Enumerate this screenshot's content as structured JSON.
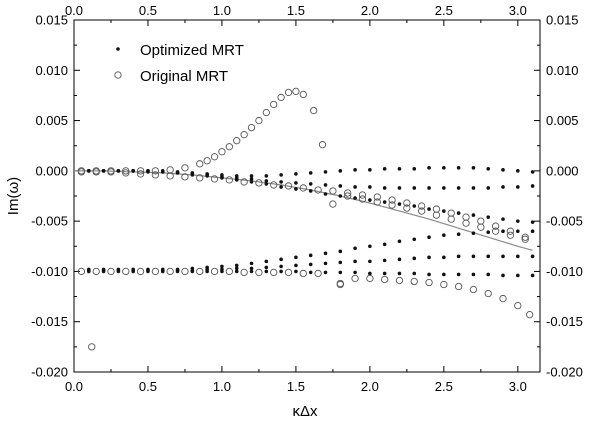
{
  "chart_data": {
    "type": "scatter",
    "title": "",
    "xlabel": "κΔx",
    "ylabel": "Im(ω)",
    "xlim": [
      0.0,
      3.15
    ],
    "ylim": [
      -0.02,
      0.015
    ],
    "xticks": [
      0.0,
      0.5,
      1.0,
      1.5,
      2.0,
      2.5,
      3.0
    ],
    "yticks": [
      -0.02,
      -0.015,
      -0.01,
      -0.005,
      0.0,
      0.005,
      0.01,
      0.015
    ],
    "xtick_labels": [
      "0.0",
      "0.5",
      "1.0",
      "1.5",
      "2.0",
      "2.5",
      "3.0"
    ],
    "ytick_labels": [
      "-0.020",
      "-0.015",
      "-0.010",
      "-0.005",
      "0.000",
      "0.005",
      "0.010",
      "0.015"
    ],
    "grid": false,
    "legend_position": "top-left",
    "colors": {
      "optimized": "#111111",
      "original": "#555555",
      "curve": "#8a8a8a",
      "axes": "#000000"
    },
    "series": [
      {
        "name": "Optimized MRT",
        "marker": "filled-dot",
        "x": [
          0.1,
          0.2,
          0.3,
          0.4,
          0.5,
          0.6,
          0.7,
          0.8,
          0.9,
          1.0,
          1.1,
          1.2,
          1.3,
          1.4,
          1.5,
          1.6,
          1.7,
          1.8,
          1.9,
          2.0,
          2.1,
          2.2,
          2.3,
          2.4,
          2.5,
          2.6,
          2.7,
          2.8,
          2.9,
          3.0,
          3.1,
          0.1,
          0.2,
          0.3,
          0.4,
          0.5,
          0.6,
          0.7,
          0.8,
          0.9,
          1.0,
          1.1,
          1.2,
          1.3,
          1.4,
          1.5,
          1.6,
          1.7,
          1.8,
          1.9,
          2.0,
          2.1,
          2.2,
          2.3,
          2.4,
          2.5,
          2.6,
          2.7,
          2.8,
          2.9,
          3.0,
          3.1,
          0.1,
          0.2,
          0.3,
          0.4,
          0.5,
          0.6,
          0.7,
          0.8,
          0.9,
          1.0,
          1.1,
          1.2,
          1.3,
          1.4,
          1.5,
          1.6,
          1.7,
          1.8,
          1.9,
          2.0,
          2.1,
          2.2,
          2.3,
          2.4,
          2.5,
          2.6,
          2.7,
          2.8,
          2.9,
          3.0,
          3.1,
          0.1,
          0.2,
          0.3,
          0.4,
          0.5,
          0.6,
          0.7,
          0.8,
          0.9,
          1.0,
          1.1,
          1.2,
          1.3,
          1.4,
          1.5,
          1.6,
          1.7,
          1.8,
          1.9,
          2.0,
          2.1,
          2.2,
          2.3,
          2.4,
          2.5,
          2.6,
          2.7,
          2.8,
          2.9,
          3.0,
          3.1,
          0.1,
          0.2,
          0.3,
          0.4,
          0.5,
          0.6,
          0.7,
          0.8,
          0.9,
          1.0,
          1.1,
          1.2,
          1.3,
          1.4,
          1.5,
          1.6,
          1.7,
          1.8,
          1.9,
          2.0,
          2.1,
          2.2,
          2.3,
          2.4,
          2.5,
          2.6,
          2.7,
          2.8,
          2.9,
          3.0,
          3.1,
          0.1,
          0.2,
          0.3,
          0.4,
          0.5,
          0.6,
          0.7,
          0.8,
          0.9,
          1.0,
          1.1,
          1.2,
          1.3,
          1.4,
          1.5,
          1.6,
          1.7,
          1.8,
          1.9,
          2.0,
          2.1,
          2.2,
          2.3,
          2.4,
          2.5,
          2.6,
          2.7,
          2.8,
          2.9,
          3.0,
          3.1
        ],
        "y": [
          0.0,
          0.0,
          0.0,
          0.0,
          0.0,
          0.0,
          -0.0001,
          -0.0002,
          -0.0003,
          -0.0004,
          -0.0005,
          -0.0005,
          -0.0005,
          -0.0004,
          -0.0003,
          -0.0002,
          -0.0001,
          0.0,
          0.0001,
          0.0001,
          0.0002,
          0.0002,
          0.0002,
          0.0003,
          0.0003,
          0.0003,
          0.0003,
          0.0002,
          0.0001,
          0.0,
          -0.0001,
          0.0,
          0.0,
          0.0,
          0.0,
          0.0,
          -0.0001,
          -0.0002,
          -0.0003,
          -0.0004,
          -0.0006,
          -0.0007,
          -0.0008,
          -0.001,
          -0.0011,
          -0.0012,
          -0.0013,
          -0.0014,
          -0.0015,
          -0.0016,
          -0.0016,
          -0.0017,
          -0.0017,
          -0.0017,
          -0.0017,
          -0.0017,
          -0.0017,
          -0.0017,
          -0.0017,
          -0.0016,
          -0.0016,
          -0.0015,
          0.0,
          0.0,
          0.0,
          0.0,
          -0.0001,
          -0.0001,
          -0.0002,
          -0.0004,
          -0.0005,
          -0.0007,
          -0.0009,
          -0.0011,
          -0.0013,
          -0.0016,
          -0.0018,
          -0.002,
          -0.0023,
          -0.0025,
          -0.0027,
          -0.0029,
          -0.0031,
          -0.0033,
          -0.0035,
          -0.0038,
          -0.004,
          -0.0042,
          -0.0044,
          -0.0046,
          -0.0048,
          -0.005,
          -0.0051,
          -0.0098,
          -0.0098,
          -0.0098,
          -0.0098,
          -0.0098,
          -0.0098,
          -0.0098,
          -0.0097,
          -0.0096,
          -0.0095,
          -0.0094,
          -0.0092,
          -0.009,
          -0.0088,
          -0.0086,
          -0.0084,
          -0.0082,
          -0.008,
          -0.0077,
          -0.0075,
          -0.0073,
          -0.007,
          -0.0068,
          -0.0066,
          -0.0064,
          -0.0063,
          -0.0062,
          -0.0061,
          -0.006,
          -0.006,
          -0.006,
          -0.0099,
          -0.0099,
          -0.0099,
          -0.0099,
          -0.0099,
          -0.0099,
          -0.0099,
          -0.0099,
          -0.0098,
          -0.0098,
          -0.0097,
          -0.0097,
          -0.0096,
          -0.0095,
          -0.0094,
          -0.0093,
          -0.0092,
          -0.0091,
          -0.009,
          -0.009,
          -0.0089,
          -0.0088,
          -0.0087,
          -0.0086,
          -0.0086,
          -0.0085,
          -0.0085,
          -0.0085,
          -0.0085,
          -0.0085,
          -0.0085,
          -0.01,
          -0.01,
          -0.01,
          -0.01,
          -0.01,
          -0.01,
          -0.01,
          -0.01,
          -0.01,
          -0.01,
          -0.01,
          -0.01,
          -0.01,
          -0.01,
          -0.01,
          -0.0101,
          -0.0101,
          -0.0101,
          -0.0101,
          -0.0102,
          -0.0102,
          -0.0102,
          -0.0102,
          -0.0103,
          -0.0103,
          -0.0103,
          -0.0103,
          -0.0103,
          -0.0104,
          -0.0104,
          -0.0104
        ]
      },
      {
        "name": "Original MRT",
        "marker": "open-circle",
        "x": [
          0.05,
          0.15,
          0.25,
          0.35,
          0.45,
          0.55,
          0.65,
          0.75,
          0.85,
          0.9,
          0.95,
          1.0,
          1.05,
          1.1,
          1.15,
          1.2,
          1.25,
          1.3,
          1.35,
          1.4,
          1.45,
          1.5,
          1.55,
          1.62,
          1.68,
          1.75,
          1.85,
          1.95,
          2.05,
          2.15,
          2.25,
          2.35,
          2.45,
          2.55,
          2.65,
          2.75,
          2.85,
          2.95,
          3.05,
          0.05,
          0.15,
          0.25,
          0.35,
          0.45,
          0.55,
          0.65,
          0.75,
          0.85,
          0.95,
          1.05,
          1.15,
          1.25,
          1.35,
          1.45,
          1.55,
          1.65,
          1.8,
          1.9,
          2.0,
          2.1,
          2.2,
          2.3,
          2.4,
          2.5,
          2.6,
          2.7,
          2.8,
          2.9,
          3.0,
          3.08,
          0.12,
          1.8,
          0.05,
          0.15,
          0.25,
          0.35,
          0.45,
          0.55,
          0.65,
          0.75,
          0.85,
          0.95,
          1.05,
          1.15,
          1.25,
          1.35,
          1.45,
          1.55,
          1.65,
          1.75,
          1.85,
          1.95,
          2.05,
          2.15,
          2.25,
          2.35,
          2.45,
          2.55,
          2.65,
          2.75,
          2.85,
          2.95,
          3.05
        ],
        "y": [
          0.0,
          0.0,
          0.0,
          0.0,
          0.0,
          0.0,
          0.0001,
          0.0003,
          0.0007,
          0.001,
          0.0014,
          0.0019,
          0.0024,
          0.003,
          0.0036,
          0.0043,
          0.005,
          0.0058,
          0.0066,
          0.0073,
          0.0078,
          0.0079,
          0.0076,
          0.006,
          0.0026,
          -0.0033,
          -0.0025,
          -0.0028,
          -0.0031,
          -0.0034,
          -0.0037,
          -0.004,
          -0.0044,
          -0.0048,
          -0.0052,
          -0.0056,
          -0.006,
          -0.0064,
          -0.0068,
          -0.01,
          -0.01,
          -0.01,
          -0.01,
          -0.01,
          -0.01,
          -0.01,
          -0.01,
          -0.01,
          -0.01,
          -0.01,
          -0.0101,
          -0.0101,
          -0.0101,
          -0.0101,
          -0.0102,
          -0.0102,
          -0.0113,
          -0.0107,
          -0.0107,
          -0.0108,
          -0.0109,
          -0.011,
          -0.0111,
          -0.0113,
          -0.0115,
          -0.0118,
          -0.0122,
          -0.0127,
          -0.0134,
          -0.0143,
          -0.0175,
          -0.0112,
          -0.0001,
          -0.0001,
          -0.0001,
          -0.0002,
          -0.0003,
          -0.0004,
          -0.0005,
          -0.0006,
          -0.0007,
          -0.0008,
          -0.0009,
          -0.0011,
          -0.0012,
          -0.0014,
          -0.0015,
          -0.0017,
          -0.0019,
          -0.002,
          -0.0022,
          -0.0024,
          -0.0026,
          -0.0029,
          -0.0032,
          -0.0035,
          -0.0038,
          -0.0042,
          -0.0046,
          -0.005,
          -0.0055,
          -0.006,
          -0.0066
        ]
      },
      {
        "name": "",
        "marker": "line",
        "x": [
          0.0,
          0.2,
          0.4,
          0.6,
          0.8,
          1.0,
          1.2,
          1.4,
          1.6,
          1.8,
          2.0,
          2.2,
          2.4,
          2.6,
          2.8,
          3.0,
          3.1
        ],
        "y": [
          0.0,
          0.0,
          -0.0001,
          -0.0002,
          -0.0004,
          -0.0007,
          -0.001,
          -0.0014,
          -0.0019,
          -0.0025,
          -0.0032,
          -0.004,
          -0.0048,
          -0.0057,
          -0.0066,
          -0.0075,
          -0.0079
        ]
      }
    ]
  }
}
